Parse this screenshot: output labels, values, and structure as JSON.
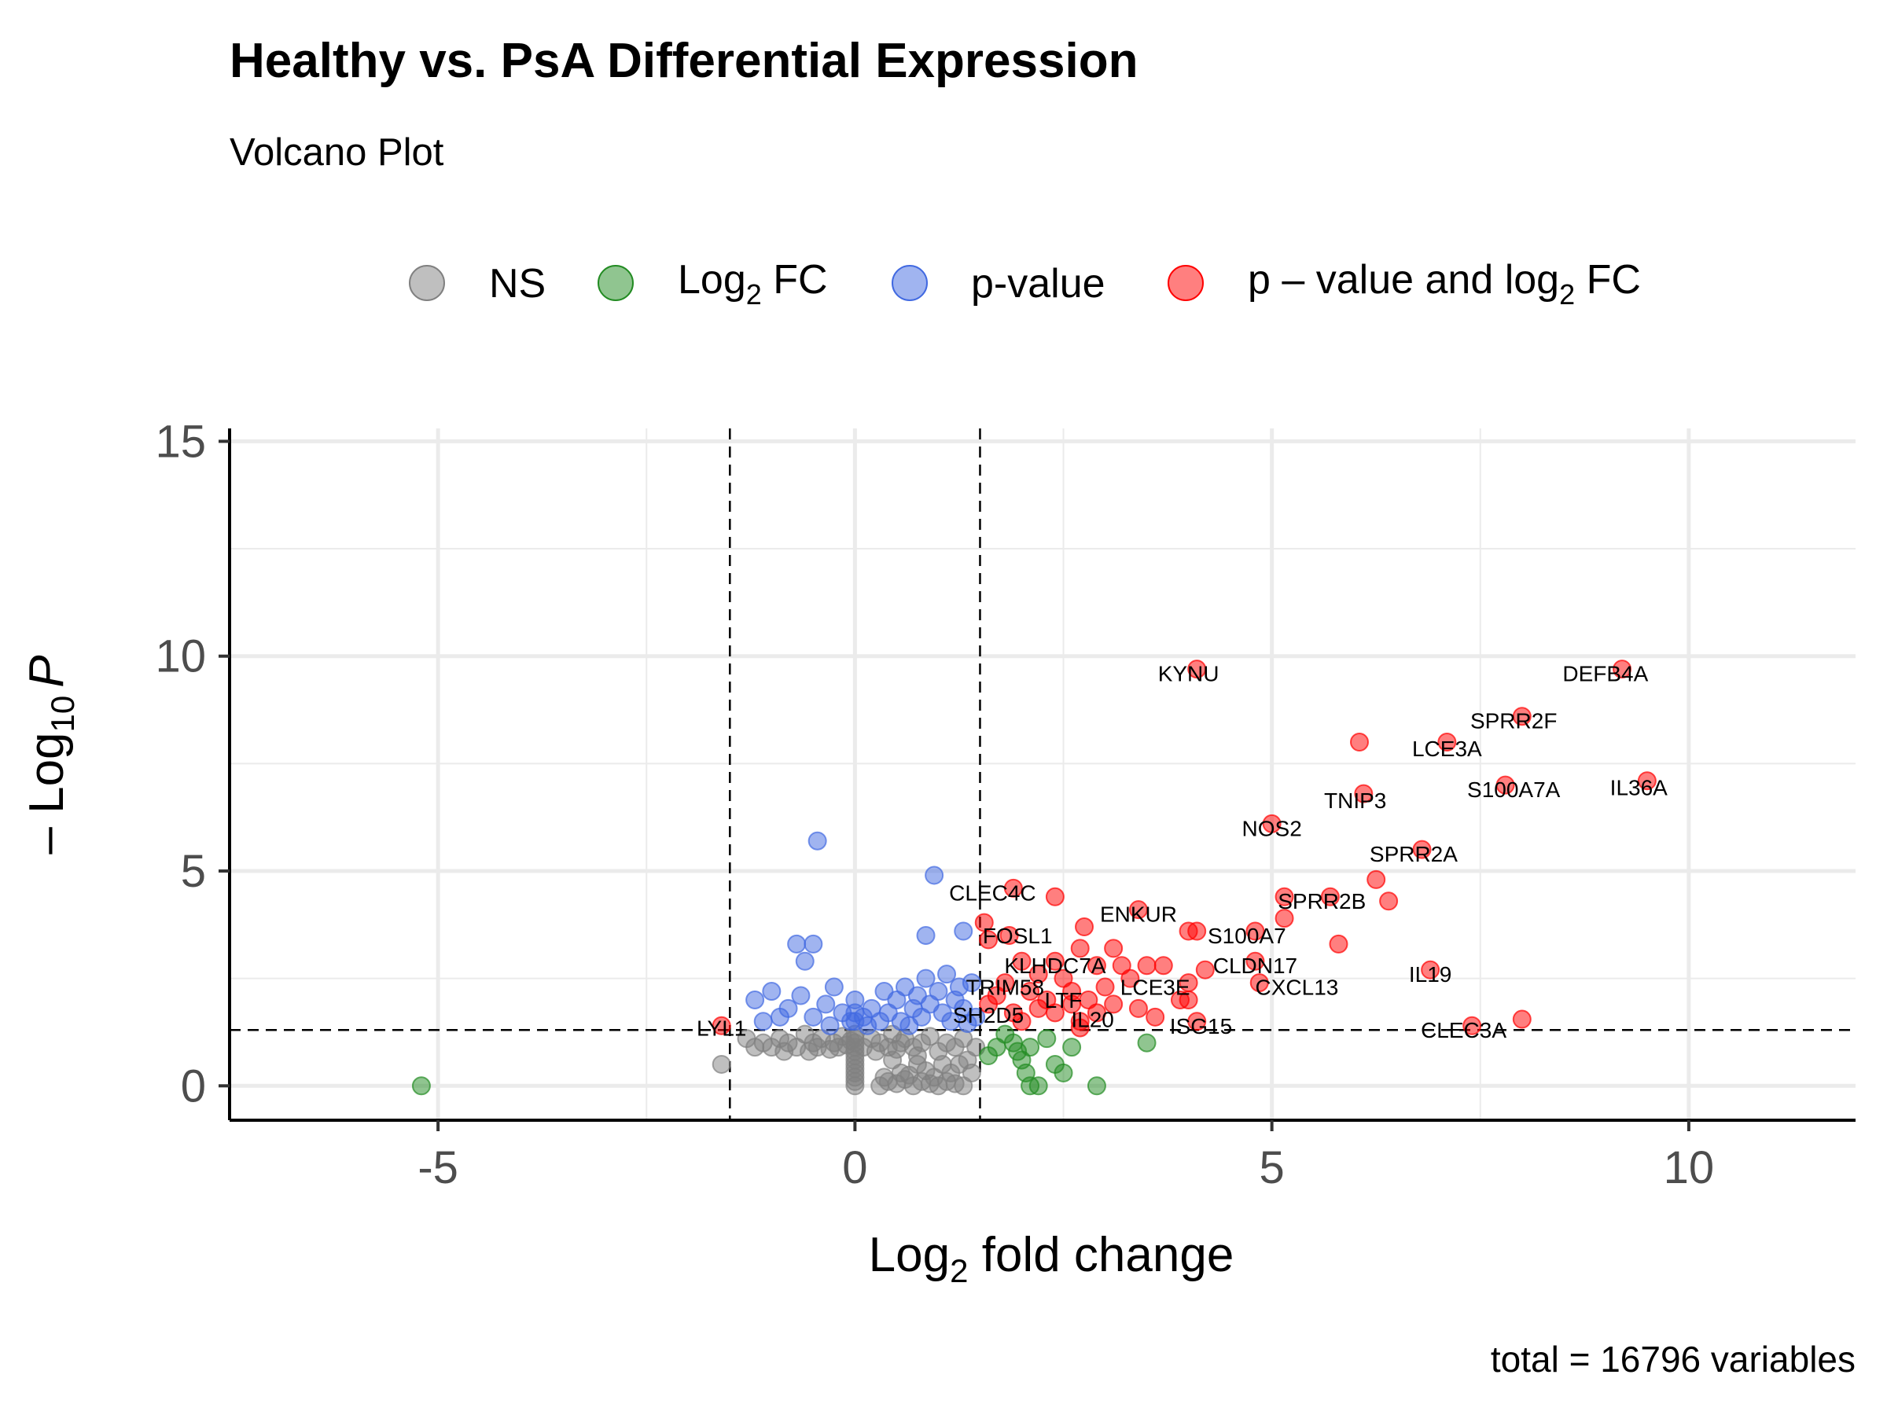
{
  "chart_data": {
    "type": "scatter",
    "title": "Healthy vs. PsA Differential Expression",
    "subtitle": "Volcano Plot",
    "caption": "total = 16796 variables",
    "xlabel": {
      "prefix": "Log",
      "sub": "2",
      "suffix": " fold change"
    },
    "ylabel": {
      "prefix": "– Log",
      "sub": "10",
      "italic": "P"
    },
    "xlim": [
      -7.5,
      12
    ],
    "ylim": [
      -0.8,
      15.3
    ],
    "x_ticks": [
      {
        "value": -5,
        "label": "-5"
      },
      {
        "value": 0,
        "label": "0"
      },
      {
        "value": 5,
        "label": "5"
      },
      {
        "value": 10,
        "label": "10"
      }
    ],
    "y_ticks": [
      {
        "value": 0,
        "label": "0"
      },
      {
        "value": 5,
        "label": "5"
      },
      {
        "value": 10,
        "label": "10"
      },
      {
        "value": 15,
        "label": "15"
      }
    ],
    "grid": true,
    "legend_position": "top",
    "cutoffs": {
      "fc": 1.5,
      "p": 1.3
    },
    "legend": [
      {
        "key": "ns",
        "label": "NS",
        "color": "#808080"
      },
      {
        "key": "fc",
        "label_prefix": "Log",
        "label_sub": "2",
        "label_suffix": " FC",
        "color": "#228B22"
      },
      {
        "key": "p",
        "label": "p-value",
        "color": "#4169E1"
      },
      {
        "key": "both",
        "label_prefix": "p – value and log",
        "label_sub": "2",
        "label_suffix": " FC",
        "color": "#FF0000"
      }
    ],
    "series": [
      {
        "key": "ns",
        "points": [
          [
            -1.6,
            0.5
          ],
          [
            -1.3,
            1.1
          ],
          [
            -1.2,
            0.9
          ],
          [
            -1.1,
            1.0
          ],
          [
            -1.0,
            0.9
          ],
          [
            -0.9,
            1.1
          ],
          [
            -0.85,
            0.8
          ],
          [
            -0.8,
            1.0
          ],
          [
            -0.7,
            0.9
          ],
          [
            -0.6,
            1.2
          ],
          [
            -0.55,
            0.8
          ],
          [
            -0.5,
            1.0
          ],
          [
            -0.45,
            0.9
          ],
          [
            -0.4,
            1.1
          ],
          [
            -0.3,
            0.85
          ],
          [
            -0.25,
            1.0
          ],
          [
            -0.2,
            0.9
          ],
          [
            -0.15,
            1.15
          ],
          [
            -0.1,
            0.95
          ],
          [
            -0.05,
            1.05
          ],
          [
            0,
            0
          ],
          [
            0,
            0.1
          ],
          [
            0,
            0.2
          ],
          [
            0,
            0.3
          ],
          [
            0,
            0.4
          ],
          [
            0,
            0.5
          ],
          [
            0,
            0.6
          ],
          [
            0,
            0.7
          ],
          [
            0,
            0.8
          ],
          [
            0,
            0.9
          ],
          [
            0,
            1.0
          ],
          [
            0,
            1.1
          ],
          [
            0,
            1.2
          ],
          [
            0.1,
            0.9
          ],
          [
            0.2,
            1.1
          ],
          [
            0.25,
            0.8
          ],
          [
            0.3,
            1.0
          ],
          [
            0.4,
            0.9
          ],
          [
            0.45,
            1.2
          ],
          [
            0.5,
            0.85
          ],
          [
            0.55,
            1.0
          ],
          [
            0.6,
            1.1
          ],
          [
            0.7,
            0.9
          ],
          [
            0.75,
            0.7
          ],
          [
            0.8,
            1.0
          ],
          [
            0.9,
            1.15
          ],
          [
            1.0,
            0.8
          ],
          [
            1.05,
            0.5
          ],
          [
            1.1,
            1.0
          ],
          [
            1.2,
            0.9
          ],
          [
            1.3,
            1.1
          ],
          [
            1.4,
            0.3
          ],
          [
            1.45,
            0.9
          ],
          [
            0.3,
            0.0
          ],
          [
            0.4,
            0.1
          ],
          [
            0.5,
            0.05
          ],
          [
            0.6,
            0.15
          ],
          [
            0.7,
            0.0
          ],
          [
            0.8,
            0.1
          ],
          [
            0.9,
            0.05
          ],
          [
            1.0,
            0.0
          ],
          [
            1.1,
            0.1
          ],
          [
            1.2,
            0.05
          ],
          [
            1.3,
            0.0
          ],
          [
            0.35,
            0.2
          ],
          [
            0.55,
            0.3
          ],
          [
            0.65,
            0.25
          ],
          [
            0.85,
            0.35
          ],
          [
            0.95,
            0.2
          ],
          [
            1.15,
            0.3
          ],
          [
            1.25,
            0.5
          ],
          [
            0.45,
            0.6
          ],
          [
            0.75,
            0.5
          ],
          [
            1.35,
            0.6
          ]
        ]
      },
      {
        "key": "fc",
        "points": [
          [
            -5.2,
            0.0
          ],
          [
            3.5,
            1.0
          ],
          [
            2.9,
            0.0
          ],
          [
            2.4,
            0.5
          ],
          [
            2.5,
            0.3
          ],
          [
            2.2,
            0.0
          ],
          [
            2.1,
            0.0
          ],
          [
            2.05,
            0.3
          ],
          [
            2.0,
            0.6
          ],
          [
            1.95,
            0.8
          ],
          [
            1.9,
            1.0
          ],
          [
            1.8,
            1.2
          ],
          [
            1.7,
            0.9
          ],
          [
            1.6,
            0.7
          ],
          [
            2.3,
            1.1
          ],
          [
            2.1,
            0.9
          ],
          [
            2.6,
            0.9
          ]
        ]
      },
      {
        "key": "p",
        "points": [
          [
            -0.45,
            5.7
          ],
          [
            0.95,
            4.9
          ],
          [
            0.85,
            3.5
          ],
          [
            1.3,
            3.6
          ],
          [
            -0.7,
            3.3
          ],
          [
            -0.5,
            3.3
          ],
          [
            -0.6,
            2.9
          ],
          [
            -1.2,
            2.0
          ],
          [
            -1.0,
            2.2
          ],
          [
            -0.8,
            1.8
          ],
          [
            -0.65,
            2.1
          ],
          [
            -0.5,
            1.6
          ],
          [
            -0.35,
            1.9
          ],
          [
            -0.25,
            2.3
          ],
          [
            -0.15,
            1.7
          ],
          [
            -0.05,
            1.5
          ],
          [
            0.0,
            2.0
          ],
          [
            0.0,
            1.7
          ],
          [
            0.0,
            1.5
          ],
          [
            0.1,
            1.6
          ],
          [
            0.2,
            1.8
          ],
          [
            0.3,
            1.5
          ],
          [
            0.35,
            2.2
          ],
          [
            0.4,
            1.7
          ],
          [
            0.5,
            2.0
          ],
          [
            0.55,
            1.5
          ],
          [
            0.6,
            2.3
          ],
          [
            0.7,
            1.8
          ],
          [
            0.75,
            2.1
          ],
          [
            0.8,
            1.6
          ],
          [
            0.85,
            2.5
          ],
          [
            0.9,
            1.9
          ],
          [
            1.0,
            2.2
          ],
          [
            1.05,
            1.7
          ],
          [
            1.1,
            2.6
          ],
          [
            1.15,
            1.5
          ],
          [
            1.2,
            2.0
          ],
          [
            1.25,
            2.3
          ],
          [
            1.3,
            1.8
          ],
          [
            1.4,
            2.4
          ],
          [
            1.45,
            1.6
          ],
          [
            -1.1,
            1.5
          ],
          [
            -0.9,
            1.6
          ],
          [
            -0.3,
            1.4
          ],
          [
            0.15,
            1.4
          ],
          [
            0.65,
            1.4
          ],
          [
            1.35,
            1.45
          ]
        ]
      },
      {
        "key": "both",
        "points": [
          [
            4.1,
            9.7
          ],
          [
            9.2,
            9.7
          ],
          [
            8.0,
            8.6
          ],
          [
            7.1,
            8.0
          ],
          [
            6.05,
            8.0
          ],
          [
            6.1,
            6.8
          ],
          [
            7.8,
            7.0
          ],
          [
            9.5,
            7.1
          ],
          [
            5.0,
            6.1
          ],
          [
            6.8,
            5.5
          ],
          [
            6.25,
            4.8
          ],
          [
            6.4,
            4.3
          ],
          [
            5.7,
            4.4
          ],
          [
            5.15,
            4.4
          ],
          [
            5.15,
            3.9
          ],
          [
            5.8,
            3.3
          ],
          [
            4.8,
            3.6
          ],
          [
            4.0,
            3.6
          ],
          [
            4.1,
            3.6
          ],
          [
            3.4,
            4.1
          ],
          [
            1.9,
            4.6
          ],
          [
            2.4,
            4.4
          ],
          [
            1.55,
            3.8
          ],
          [
            1.6,
            3.4
          ],
          [
            1.85,
            3.5
          ],
          [
            6.9,
            2.7
          ],
          [
            4.8,
            2.9
          ],
          [
            4.85,
            2.4
          ],
          [
            4.2,
            2.7
          ],
          [
            4.0,
            2.4
          ],
          [
            3.9,
            2.0
          ],
          [
            4.0,
            2.0
          ],
          [
            3.6,
            1.6
          ],
          [
            4.1,
            1.5
          ],
          [
            3.2,
            2.8
          ],
          [
            3.5,
            2.8
          ],
          [
            3.7,
            2.8
          ],
          [
            2.7,
            3.2
          ],
          [
            2.75,
            3.7
          ],
          [
            3.1,
            3.2
          ],
          [
            2.9,
            2.8
          ],
          [
            2.0,
            2.9
          ],
          [
            2.2,
            2.6
          ],
          [
            2.4,
            2.9
          ],
          [
            2.5,
            2.5
          ],
          [
            2.6,
            2.2
          ],
          [
            2.1,
            2.2
          ],
          [
            2.3,
            2.0
          ],
          [
            1.8,
            2.4
          ],
          [
            1.7,
            2.1
          ],
          [
            1.6,
            1.9
          ],
          [
            1.9,
            1.7
          ],
          [
            2.0,
            1.5
          ],
          [
            2.2,
            1.8
          ],
          [
            2.4,
            1.7
          ],
          [
            2.6,
            1.9
          ],
          [
            2.7,
            1.5
          ],
          [
            2.8,
            2.0
          ],
          [
            2.9,
            1.7
          ],
          [
            3.0,
            2.3
          ],
          [
            3.1,
            1.9
          ],
          [
            3.3,
            2.5
          ],
          [
            3.4,
            1.8
          ],
          [
            2.7,
            1.35
          ],
          [
            -1.6,
            1.4
          ],
          [
            7.4,
            1.4
          ],
          [
            8.0,
            1.55
          ]
        ]
      }
    ],
    "labels": [
      {
        "gene": "KYNU",
        "x": 4.1,
        "y": 9.7,
        "lx": 4.0,
        "ly": 9.6
      },
      {
        "gene": "DEFB4A",
        "x": 9.2,
        "y": 9.7,
        "lx": 9.0,
        "ly": 9.6
      },
      {
        "gene": "SPRR2F",
        "x": 8.0,
        "y": 8.6,
        "lx": 7.9,
        "ly": 8.5
      },
      {
        "gene": "LCE3A",
        "x": 7.1,
        "y": 8.0,
        "lx": 7.1,
        "ly": 7.85
      },
      {
        "gene": "S100A7A",
        "x": 7.8,
        "y": 7.0,
        "lx": 7.9,
        "ly": 6.9
      },
      {
        "gene": "IL36A",
        "x": 9.5,
        "y": 7.1,
        "lx": 9.4,
        "ly": 6.95
      },
      {
        "gene": "TNIP3",
        "x": 6.1,
        "y": 6.8,
        "lx": 6.0,
        "ly": 6.65
      },
      {
        "gene": "NOS2",
        "x": 5.0,
        "y": 6.1,
        "lx": 5.0,
        "ly": 6.0
      },
      {
        "gene": "SPRR2A",
        "x": 6.8,
        "y": 5.5,
        "lx": 6.7,
        "ly": 5.4
      },
      {
        "gene": "SPRR2B",
        "x": 5.7,
        "y": 4.4,
        "lx": 5.6,
        "ly": 4.3
      },
      {
        "gene": "CLEC4C",
        "x": 1.9,
        "y": 4.6,
        "lx": 1.65,
        "ly": 4.5
      },
      {
        "gene": "ENKUR",
        "x": 3.4,
        "y": 4.1,
        "lx": 3.4,
        "ly": 4.0
      },
      {
        "gene": "FOSL1",
        "x": 1.85,
        "y": 3.5,
        "lx": 1.95,
        "ly": 3.5
      },
      {
        "gene": "S100A7",
        "x": 4.1,
        "y": 3.6,
        "lx": 4.7,
        "ly": 3.5
      },
      {
        "gene": "KLHDC7A",
        "x": 2.2,
        "y": 2.6,
        "lx": 2.4,
        "ly": 2.8
      },
      {
        "gene": "CLDN17",
        "x": 4.8,
        "y": 2.9,
        "lx": 4.8,
        "ly": 2.8
      },
      {
        "gene": "TRIM58",
        "x": 1.8,
        "y": 2.4,
        "lx": 1.8,
        "ly": 2.3
      },
      {
        "gene": "LCE3E",
        "x": 3.6,
        "y": 2.4,
        "lx": 3.6,
        "ly": 2.3
      },
      {
        "gene": "CXCL13",
        "x": 4.85,
        "y": 2.4,
        "lx": 5.3,
        "ly": 2.3
      },
      {
        "gene": "IL19",
        "x": 6.9,
        "y": 2.7,
        "lx": 6.9,
        "ly": 2.6
      },
      {
        "gene": "LTF",
        "x": 2.5,
        "y": 2.2,
        "lx": 2.5,
        "ly": 2.0
      },
      {
        "gene": "SH2D5",
        "x": 1.6,
        "y": 1.7,
        "lx": 1.6,
        "ly": 1.65
      },
      {
        "gene": "IL20",
        "x": 2.9,
        "y": 1.7,
        "lx": 2.85,
        "ly": 1.55
      },
      {
        "gene": "ISG15",
        "x": 4.1,
        "y": 1.5,
        "lx": 4.15,
        "ly": 1.4
      },
      {
        "gene": "LYL1",
        "x": -1.6,
        "y": 1.4,
        "lx": -1.6,
        "ly": 1.35
      },
      {
        "gene": "CLEC3A",
        "x": 7.4,
        "y": 1.4,
        "lx": 7.3,
        "ly": 1.3
      }
    ]
  }
}
